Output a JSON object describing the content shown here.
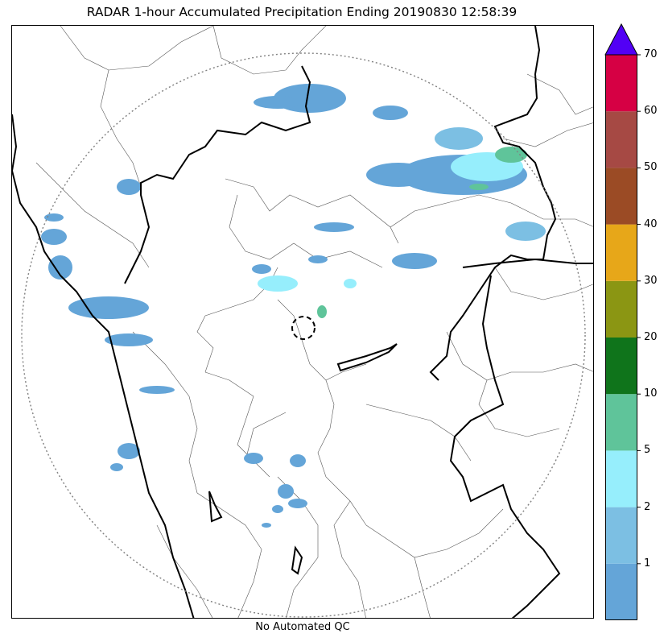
{
  "title": "RADAR 1-hour Accumulated Precipitation Ending 20190830 12:58:39",
  "qc_note": "No Automated QC",
  "colorbar": {
    "ticks": [
      "1",
      "2",
      "5",
      "10",
      "20",
      "30",
      "40",
      "50",
      "60",
      "70"
    ],
    "bins": [
      {
        "color": "#64a5d8"
      },
      {
        "color": "#7cbfe3"
      },
      {
        "color": "#96eefc"
      },
      {
        "color": "#5fc49a"
      },
      {
        "color": "#0f741b"
      },
      {
        "color": "#8b9613"
      },
      {
        "color": "#e7a719"
      },
      {
        "color": "#9b4b25"
      },
      {
        "color": "#a64944"
      },
      {
        "color": "#d60044"
      }
    ],
    "extend_color": "#5200f5"
  },
  "map": {
    "range_ring": "dotted",
    "radar_site_marker": "dashed circle",
    "coastline": "black thick line",
    "district_boundaries": "thin grey lines"
  }
}
